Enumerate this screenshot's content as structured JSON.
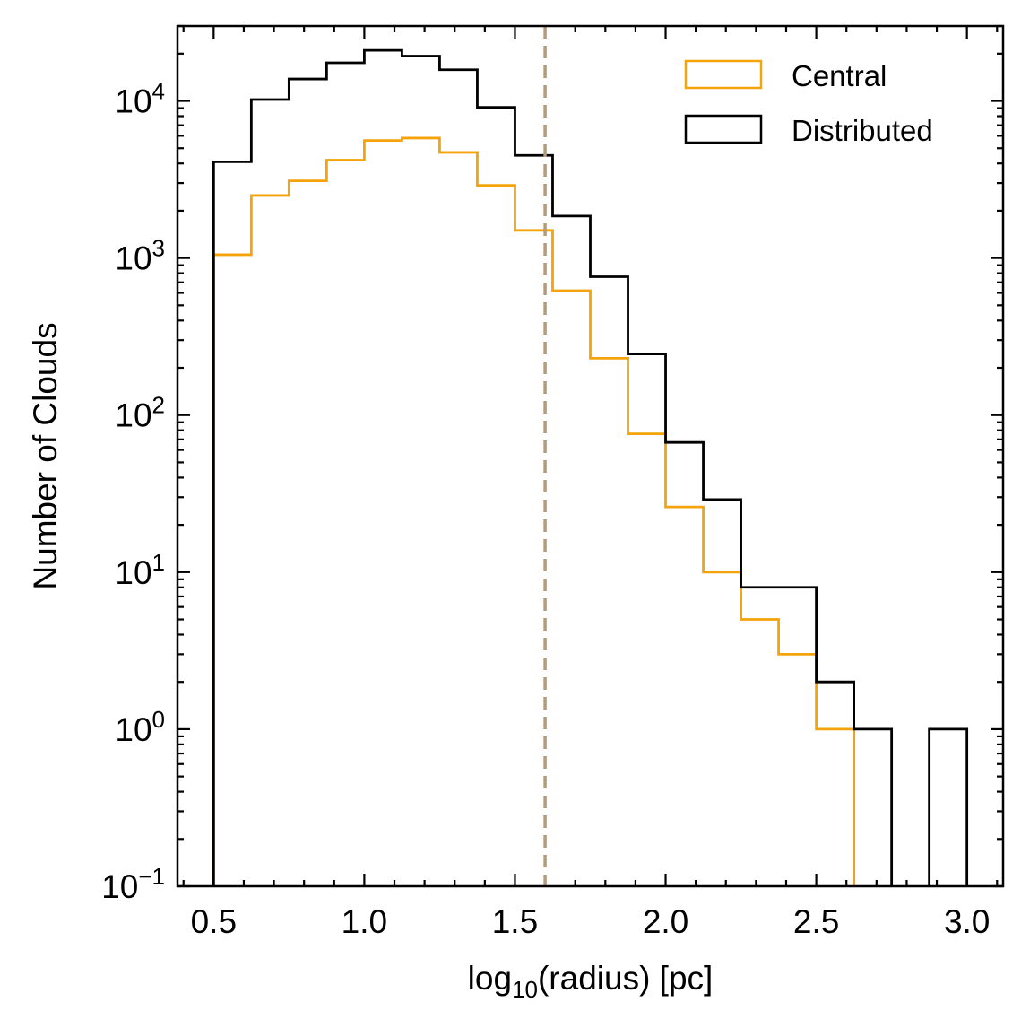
{
  "chart_data": {
    "type": "histogram",
    "xlabel": {
      "prefix": "log",
      "sub": "10",
      "suffix": "(radius) [pc]"
    },
    "ylabel": "Number of Clouds",
    "yscale": "log",
    "xlim": [
      0.38,
      3.12
    ],
    "ylim": [
      0.1,
      30000
    ],
    "bin_edges": [
      0.5,
      0.625,
      0.75,
      0.875,
      1.0,
      1.125,
      1.25,
      1.375,
      1.5,
      1.625,
      1.75,
      1.875,
      2.0,
      2.125,
      2.25,
      2.375,
      2.5,
      2.625,
      2.75,
      2.875,
      3.0
    ],
    "series": [
      {
        "name": "Central",
        "color": "#f5a30a",
        "values": [
          1050,
          2500,
          3100,
          4200,
          5600,
          5800,
          4700,
          2900,
          1500,
          620,
          230,
          76,
          26,
          10,
          5,
          3,
          1,
          0,
          0,
          0
        ]
      },
      {
        "name": "Distributed",
        "color": "#000000",
        "values": [
          4100,
          10200,
          13800,
          17500,
          21000,
          19300,
          15800,
          9100,
          4500,
          1850,
          760,
          245,
          67,
          29,
          8,
          8,
          2,
          1,
          0,
          1
        ]
      }
    ],
    "vline": {
      "x": 1.6,
      "color": "#b59b7a",
      "style": "dashed"
    },
    "x_ticks": [
      {
        "value": 0.5,
        "label": "0.5"
      },
      {
        "value": 1.0,
        "label": "1.0"
      },
      {
        "value": 1.5,
        "label": "1.5"
      },
      {
        "value": 2.0,
        "label": "2.0"
      },
      {
        "value": 2.5,
        "label": "2.5"
      },
      {
        "value": 3.0,
        "label": "3.0"
      }
    ],
    "y_ticks": [
      {
        "exp": -1,
        "base": "10",
        "sup": "−1"
      },
      {
        "exp": 0,
        "base": "10",
        "sup": "0"
      },
      {
        "exp": 1,
        "base": "10",
        "sup": "1"
      },
      {
        "exp": 2,
        "base": "10",
        "sup": "2"
      },
      {
        "exp": 3,
        "base": "10",
        "sup": "3"
      },
      {
        "exp": 4,
        "base": "10",
        "sup": "4"
      }
    ],
    "legend": {
      "location": "upper right",
      "entries": [
        "Central",
        "Distributed"
      ]
    }
  }
}
